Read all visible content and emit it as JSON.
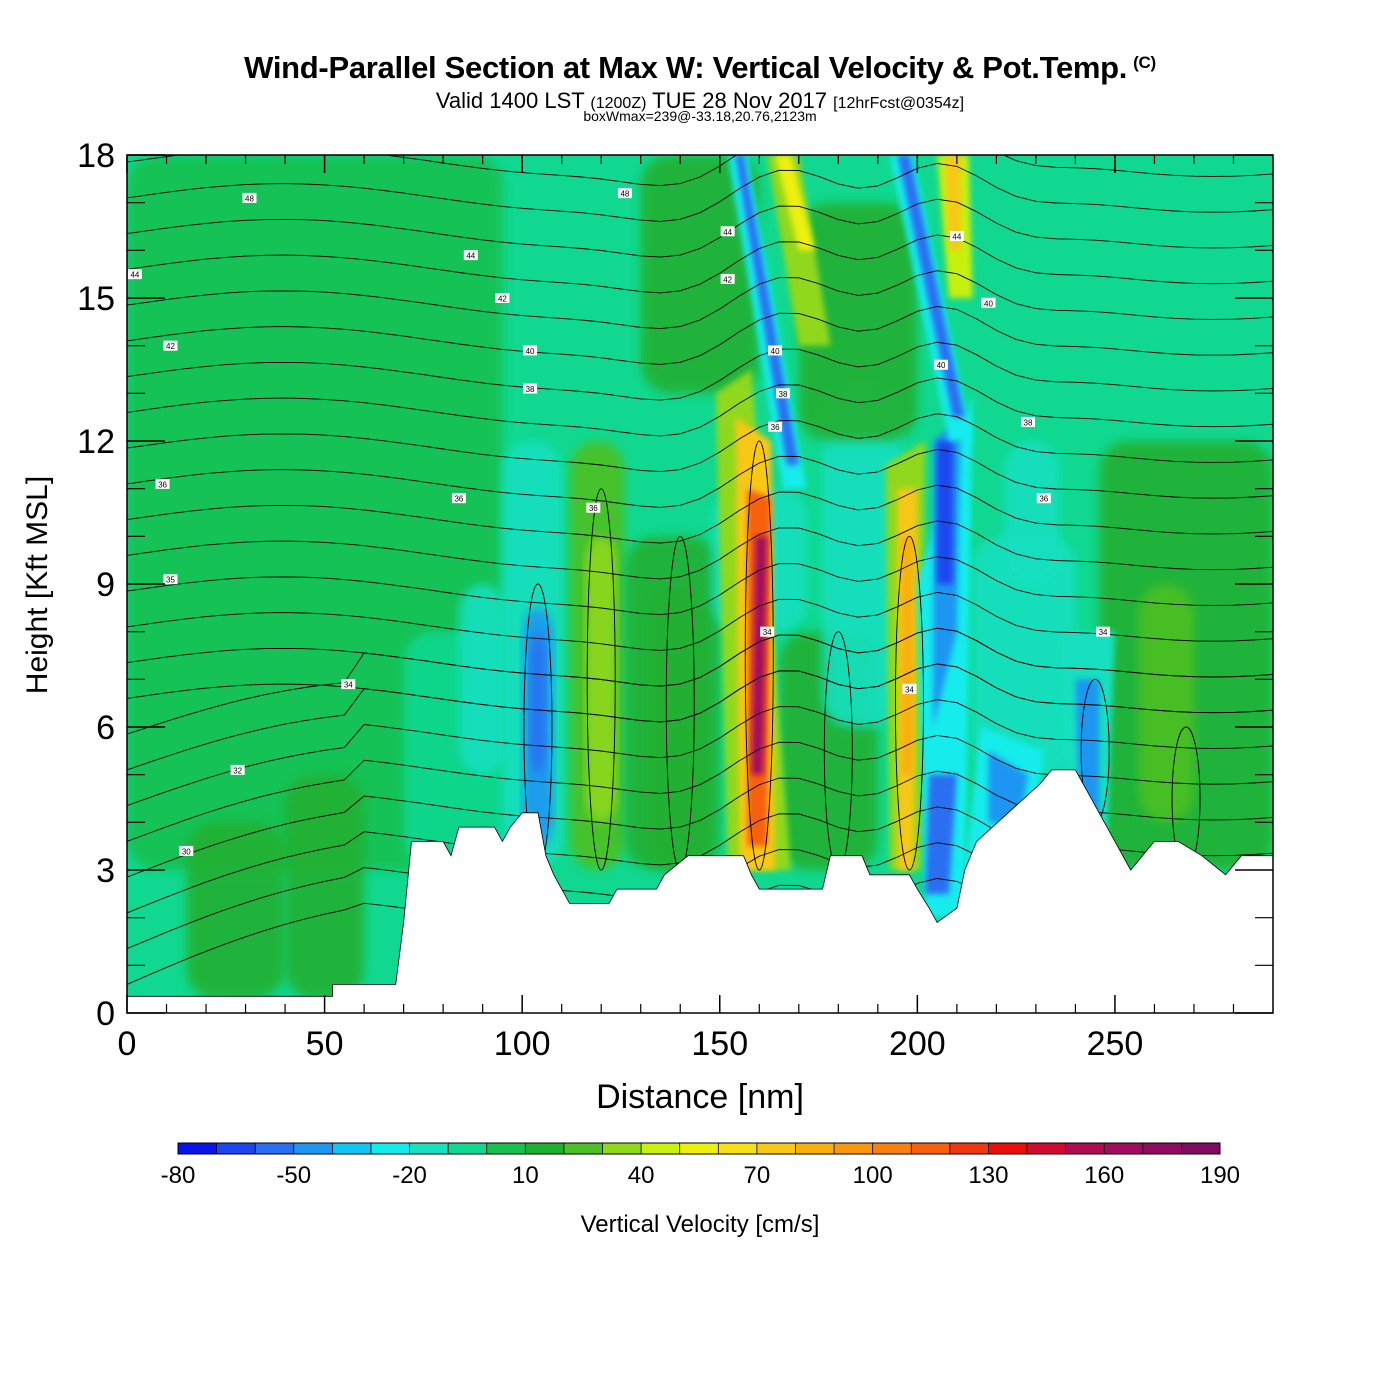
{
  "header": {
    "title": "Wind-Parallel Section at Max W: Vertical Velocity & Pot.Temp.",
    "copyright": "(C)",
    "valid_label": "Valid 1400 LST",
    "utc": "(1200Z)",
    "date": "TUE 28 Nov 2017",
    "forecast": "[12hrFcst@0354z]",
    "boxwmax": "boxWmax=239@-33.18,20.76,2123m"
  },
  "chart_data": {
    "type": "heatmap",
    "title": "Wind-Parallel Section at Max W: Vertical Velocity & Pot.Temp.",
    "xlabel": "Distance [nm]",
    "ylabel": "Height [Kft MSL]",
    "xlim": [
      0,
      290
    ],
    "ylim": [
      0,
      18
    ],
    "xticks": [
      0,
      50,
      100,
      150,
      200,
      250
    ],
    "yticks": [
      0,
      3,
      6,
      9,
      12,
      15,
      18
    ],
    "colorbar": {
      "label": "Vertical Velocity [cm/s]",
      "levels": [
        -80,
        -70,
        -60,
        -50,
        -40,
        -30,
        -20,
        -10,
        0,
        10,
        20,
        30,
        40,
        50,
        60,
        70,
        80,
        90,
        100,
        110,
        120,
        130,
        140,
        150,
        160,
        170,
        180,
        190
      ],
      "tick_labels": [
        "-80",
        "-50",
        "-20",
        "10",
        "40",
        "70",
        "100",
        "130",
        "160",
        "190"
      ],
      "colors": [
        "#0a14e8",
        "#1e46f0",
        "#2a6ef2",
        "#1e96f2",
        "#12c4f2",
        "#12ecec",
        "#18e0c0",
        "#10d890",
        "#18c050",
        "#20b030",
        "#4cc024",
        "#90d81c",
        "#c8f010",
        "#f0f010",
        "#f8e018",
        "#f8c818",
        "#f8b010",
        "#f89810",
        "#f88010",
        "#f86010",
        "#f03810",
        "#e81008",
        "#d00c30",
        "#b00c50",
        "#a00c60",
        "#900c60",
        "#800c60"
      ]
    },
    "terrain_kft": [
      [
        0,
        0.35
      ],
      [
        52,
        0.35
      ],
      [
        52,
        0.6
      ],
      [
        68,
        0.6
      ],
      [
        70,
        1.9
      ],
      [
        72,
        3.6
      ],
      [
        80,
        3.6
      ],
      [
        82,
        3.3
      ],
      [
        84,
        3.9
      ],
      [
        93,
        3.9
      ],
      [
        95,
        3.6
      ],
      [
        97,
        3.9
      ],
      [
        100,
        4.2
      ],
      [
        104,
        4.2
      ],
      [
        106,
        3.3
      ],
      [
        108,
        2.9
      ],
      [
        112,
        2.3
      ],
      [
        122,
        2.3
      ],
      [
        124,
        2.6
      ],
      [
        134,
        2.6
      ],
      [
        136,
        2.9
      ],
      [
        142,
        3.3
      ],
      [
        156,
        3.3
      ],
      [
        158,
        2.9
      ],
      [
        160,
        2.6
      ],
      [
        176,
        2.6
      ],
      [
        178,
        3.3
      ],
      [
        186,
        3.3
      ],
      [
        188,
        2.9
      ],
      [
        198,
        2.9
      ],
      [
        200,
        2.6
      ],
      [
        203,
        2.2
      ],
      [
        205,
        1.9
      ],
      [
        210,
        2.2
      ],
      [
        212,
        3.0
      ],
      [
        215,
        3.6
      ],
      [
        219,
        3.9
      ],
      [
        223,
        4.2
      ],
      [
        227,
        4.5
      ],
      [
        231,
        4.8
      ],
      [
        234,
        5.1
      ],
      [
        240,
        5.1
      ],
      [
        242,
        4.8
      ],
      [
        246,
        4.2
      ],
      [
        250,
        3.6
      ],
      [
        254,
        3.0
      ],
      [
        260,
        3.6
      ],
      [
        266,
        3.6
      ],
      [
        272,
        3.3
      ],
      [
        278,
        2.9
      ],
      [
        282,
        3.3
      ],
      [
        290,
        3.3
      ]
    ],
    "features": [
      {
        "type": "updraft",
        "x": 160,
        "peak_cm_s": 170,
        "height_kft": [
          3,
          13
        ]
      },
      {
        "type": "updraft",
        "x": 198,
        "peak_cm_s": 80,
        "height_kft": [
          3,
          11
        ]
      },
      {
        "type": "updraft",
        "x": 210,
        "peak_cm_s": 60,
        "height_kft": [
          15,
          18
        ]
      },
      {
        "type": "downdraft",
        "x": 104,
        "peak_cm_s": -60,
        "height_kft": [
          3,
          9
        ]
      },
      {
        "type": "downdraft",
        "x": 207,
        "peak_cm_s": -70,
        "height_kft": [
          2,
          12
        ]
      },
      {
        "type": "downdraft",
        "x": 245,
        "peak_cm_s": -50,
        "height_kft": [
          4,
          8
        ]
      }
    ],
    "theta_labels": [
      {
        "text": "48",
        "x": 31,
        "y": 17.1
      },
      {
        "text": "48",
        "x": 126,
        "y": 17.2
      },
      {
        "text": "44",
        "x": 2,
        "y": 15.5
      },
      {
        "text": "44",
        "x": 87,
        "y": 15.9
      },
      {
        "text": "44",
        "x": 152,
        "y": 16.4
      },
      {
        "text": "42",
        "x": 152,
        "y": 15.4
      },
      {
        "text": "44",
        "x": 210,
        "y": 16.3
      },
      {
        "text": "42",
        "x": 11,
        "y": 14.0
      },
      {
        "text": "42",
        "x": 95,
        "y": 15.0
      },
      {
        "text": "40",
        "x": 218,
        "y": 14.9
      },
      {
        "text": "40",
        "x": 102,
        "y": 13.9
      },
      {
        "text": "40",
        "x": 164,
        "y": 13.9
      },
      {
        "text": "40",
        "x": 206,
        "y": 13.6
      },
      {
        "text": "38",
        "x": 102,
        "y": 13.1
      },
      {
        "text": "38",
        "x": 166,
        "y": 13.0
      },
      {
        "text": "38",
        "x": 228,
        "y": 12.4
      },
      {
        "text": "36",
        "x": 164,
        "y": 12.3
      },
      {
        "text": "36",
        "x": 9,
        "y": 11.1
      },
      {
        "text": "36",
        "x": 84,
        "y": 10.8
      },
      {
        "text": "36",
        "x": 118,
        "y": 10.6
      },
      {
        "text": "36",
        "x": 232,
        "y": 10.8
      },
      {
        "text": "35",
        "x": 11,
        "y": 9.1
      },
      {
        "text": "34",
        "x": 162,
        "y": 8.0
      },
      {
        "text": "34",
        "x": 247,
        "y": 8.0
      },
      {
        "text": "34",
        "x": 56,
        "y": 6.9
      },
      {
        "text": "34",
        "x": 198,
        "y": 6.8
      },
      {
        "text": "32",
        "x": 28,
        "y": 5.1
      },
      {
        "text": "30",
        "x": 15,
        "y": 3.4
      }
    ]
  }
}
